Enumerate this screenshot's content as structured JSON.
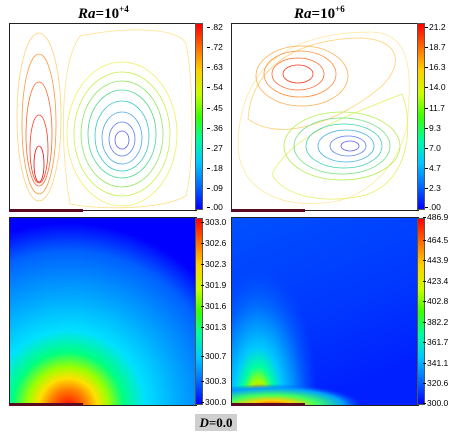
{
  "titles": {
    "left": {
      "base": "Ra",
      "eq": "=10",
      "exp": "+4"
    },
    "right": {
      "base": "Ra",
      "eq": "=10",
      "exp": "+6"
    }
  },
  "streamline_scales": {
    "left": [
      ".82",
      ".72",
      ".63",
      ".54",
      ".45",
      ".36",
      ".27",
      ".18",
      ".09",
      ".00"
    ],
    "right": [
      "21.2",
      "18.7",
      "16.3",
      "14.0",
      "11.7",
      "9.3",
      "7.0",
      "4.7",
      "2.3",
      ".00"
    ]
  },
  "temperature_scales": {
    "left": [
      "303.0",
      "302.6",
      "302.3",
      "301.9",
      "301.6",
      "301.3",
      "300.7",
      "300.3",
      "300.0"
    ],
    "right": [
      "486.9",
      "464.5",
      "443.9",
      "423.4",
      "402.8",
      "382.2",
      "361.7",
      "341.1",
      "320.6",
      "300.0"
    ]
  },
  "footer": {
    "var": "D",
    "value": "=0.0"
  },
  "colors": {
    "heater": "#5a0b22",
    "hot": "#ff0000",
    "cold": "#0000ff"
  }
}
